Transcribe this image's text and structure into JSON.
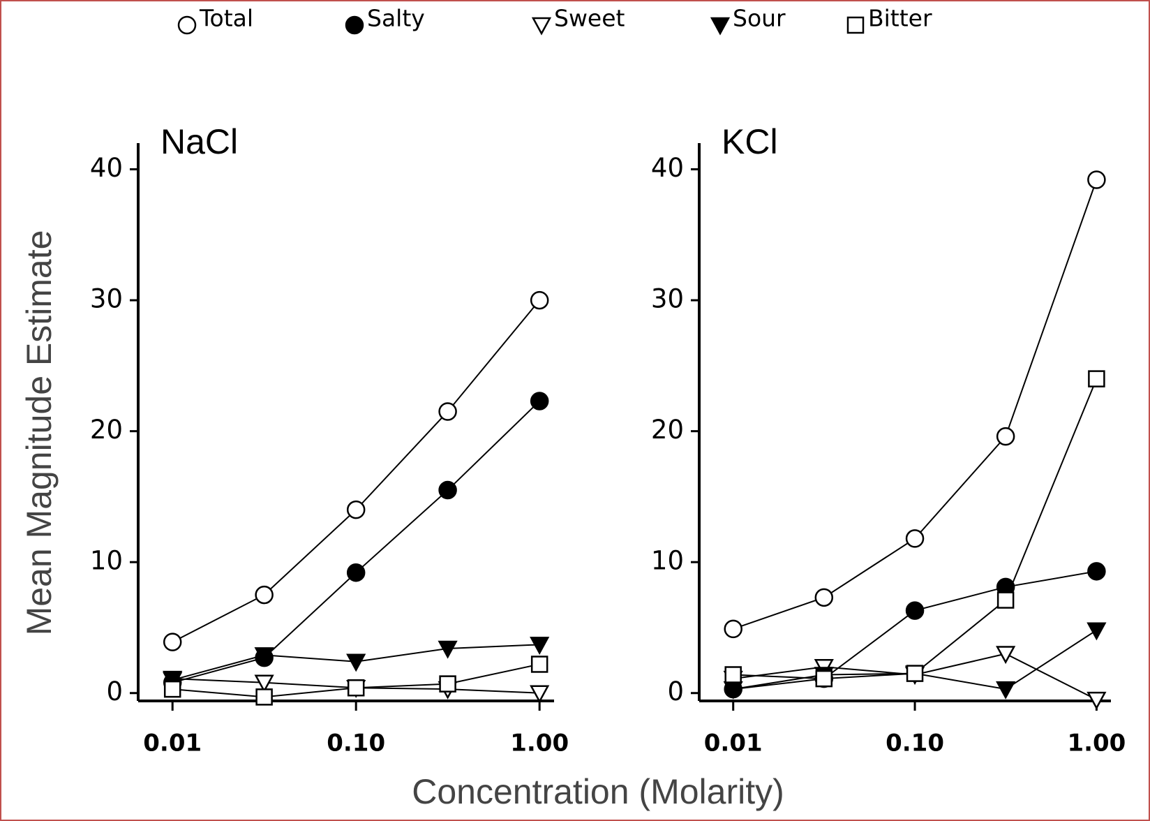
{
  "ylabel": "Mean Magnitude Estimate",
  "xlabel": "Concentration (Molarity)",
  "chart_data": [
    {
      "type": "line",
      "title": "NaCl",
      "log_x": true,
      "x": [
        0.01,
        0.0316,
        0.1,
        0.316,
        1.0
      ],
      "xlim": [
        0.0065,
        1.2
      ],
      "xticks": [
        0.01,
        {
          "value": 0.1,
          "label": "0.10"
        },
        {
          "value": 1,
          "label": "1.00"
        }
      ],
      "ylim": [
        -0.6,
        42
      ],
      "yticks": [
        0,
        10,
        20,
        30,
        40
      ],
      "series": [
        {
          "name": "Total",
          "marker": "open-circle",
          "color": "#000000",
          "values": [
            3.9,
            7.5,
            14.0,
            21.5,
            30.0
          ]
        },
        {
          "name": "Salty",
          "marker": "filled-circle",
          "color": "#000000",
          "values": [
            0.8,
            2.7,
            9.2,
            15.5,
            22.3
          ]
        },
        {
          "name": "Sweet",
          "marker": "open-triangle-down",
          "color": "#000000",
          "values": [
            1.1,
            0.8,
            0.4,
            0.3,
            0.0
          ]
        },
        {
          "name": "Sour",
          "marker": "filled-triangle-down",
          "color": "#000000",
          "values": [
            1.0,
            2.9,
            2.4,
            3.4,
            3.7
          ]
        },
        {
          "name": "Bitter",
          "marker": "open-square",
          "color": "#000000",
          "values": [
            0.3,
            -0.3,
            0.4,
            0.7,
            2.2
          ]
        }
      ]
    },
    {
      "type": "line",
      "title": "KCl",
      "log_x": true,
      "x": [
        0.01,
        0.0316,
        0.1,
        0.316,
        1.0
      ],
      "xlim": [
        0.0065,
        1.2
      ],
      "xticks": [
        0.01,
        {
          "value": 0.1,
          "label": "0.10"
        },
        {
          "value": 1,
          "label": "1.00"
        }
      ],
      "ylim": [
        -0.6,
        42
      ],
      "yticks": [
        0,
        10,
        20,
        30,
        40
      ],
      "series": [
        {
          "marker": "open-circle",
          "color": "#000000",
          "values": [
            4.9,
            7.3,
            11.8,
            19.6,
            39.2
          ]
        },
        {
          "marker": "filled-circle",
          "color": "#000000",
          "values": [
            0.3,
            1.1,
            6.3,
            8.1,
            9.3
          ]
        },
        {
          "marker": "open-triangle-down",
          "color": "#000000",
          "values": [
            1.1,
            2.0,
            1.4,
            3.0,
            -0.5
          ]
        },
        {
          "marker": "filled-triangle-down",
          "color": "#000000",
          "values": [
            0.3,
            1.4,
            1.5,
            0.3,
            4.8
          ]
        },
        {
          "marker": "open-square",
          "color": "#000000",
          "values": [
            1.4,
            1.1,
            1.5,
            7.1,
            24.0
          ]
        }
      ]
    }
  ]
}
